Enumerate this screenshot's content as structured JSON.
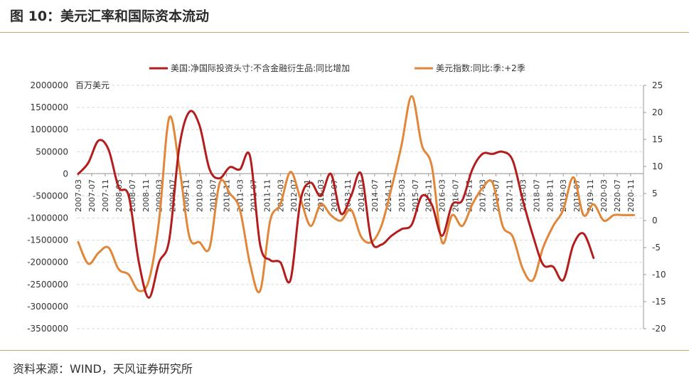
{
  "header": {
    "title": "图 10：美元汇率和国际资本流动"
  },
  "footer": {
    "source": "资料来源：WIND，天风证券研究所"
  },
  "chart_data": {
    "type": "line",
    "left_unit": "百万美元",
    "x_tick_labels": [
      "2007-03",
      "2007-07",
      "2007-11",
      "2008-03",
      "2008-07",
      "2008-11",
      "2009-03",
      "2009-07",
      "2009-11",
      "2010-03",
      "2010-07",
      "2010-11",
      "2011-03",
      "2011-07",
      "2011-11",
      "2012-03",
      "2012-07",
      "2012-11",
      "2013-03",
      "2013-07",
      "2013-11",
      "2014-03",
      "2014-07",
      "2014-11",
      "2015-03",
      "2015-07",
      "2015-11",
      "2016-03",
      "2016-07",
      "2016-11",
      "2017-03",
      "2017-07",
      "2017-11",
      "2018-03",
      "2018-07",
      "2018-11",
      "2019-03",
      "2019-07",
      "2019-11",
      "2020-03",
      "2020-07",
      "2020-11"
    ],
    "y_left": {
      "min": -3500000,
      "max": 2000000,
      "ticks": [
        "2000000",
        "1500000",
        "1000000",
        "500000",
        "0",
        "-500000",
        "-1000000",
        "-1500000",
        "-2000000",
        "-2500000",
        "-3000000",
        "-3500000"
      ]
    },
    "y_right": {
      "min": -20,
      "max": 25,
      "ticks": [
        "25",
        "20",
        "15",
        "10",
        "5",
        "0",
        "-5",
        "-10",
        "-15",
        "-20"
      ]
    },
    "grid": "horizontal-dashed",
    "legend_position": "top",
    "series": [
      {
        "name": "美国:净国际投资头寸:不含金融衍生品:同比增加",
        "axis": "left",
        "color": "#b31d1d",
        "x": [
          "2007-03",
          "2007-06",
          "2007-09",
          "2007-12",
          "2008-03",
          "2008-06",
          "2008-09",
          "2008-12",
          "2009-03",
          "2009-06",
          "2009-09",
          "2009-12",
          "2010-03",
          "2010-06",
          "2010-09",
          "2010-12",
          "2011-03",
          "2011-06",
          "2011-09",
          "2011-12",
          "2012-03",
          "2012-06",
          "2012-09",
          "2012-12",
          "2013-03",
          "2013-06",
          "2013-09",
          "2013-12",
          "2014-03",
          "2014-06",
          "2014-09",
          "2014-12",
          "2015-03",
          "2015-06",
          "2015-09",
          "2015-12",
          "2016-03",
          "2016-06",
          "2016-09",
          "2016-12",
          "2017-03",
          "2017-06",
          "2017-09",
          "2017-12",
          "2018-03",
          "2018-06",
          "2018-09",
          "2018-12",
          "2019-03",
          "2019-06",
          "2019-09",
          "2019-12"
        ],
        "values": [
          0,
          250000,
          750000,
          550000,
          -300000,
          -500000,
          -2000000,
          -2800000,
          -2000000,
          -1500000,
          600000,
          1400000,
          1100000,
          100000,
          -100000,
          150000,
          100000,
          400000,
          -1600000,
          -1950000,
          -2000000,
          -2400000,
          -600000,
          -200000,
          -500000,
          0,
          -900000,
          -500000,
          0,
          -1500000,
          -1600000,
          -1400000,
          -1250000,
          -1150000,
          -500000,
          -700000,
          -1400000,
          -700000,
          -600000,
          100000,
          450000,
          450000,
          500000,
          300000,
          -600000,
          -1400000,
          -2050000,
          -2100000,
          -2400000,
          -1600000,
          -1350000,
          -1900000
        ]
      },
      {
        "name": "美元指数:同比:季:+2季",
        "axis": "right",
        "color": "#e0873a",
        "x": [
          "2007-03",
          "2007-06",
          "2007-09",
          "2007-12",
          "2008-03",
          "2008-06",
          "2008-09",
          "2008-12",
          "2009-03",
          "2009-06",
          "2009-09",
          "2009-12",
          "2010-03",
          "2010-06",
          "2010-09",
          "2010-12",
          "2011-03",
          "2011-06",
          "2011-09",
          "2011-12",
          "2012-03",
          "2012-06",
          "2012-09",
          "2012-12",
          "2013-03",
          "2013-06",
          "2013-09",
          "2013-12",
          "2014-03",
          "2014-06",
          "2014-09",
          "2014-12",
          "2015-03",
          "2015-06",
          "2015-09",
          "2015-12",
          "2016-03",
          "2016-06",
          "2016-09",
          "2016-12",
          "2017-03",
          "2017-06",
          "2017-09",
          "2017-12",
          "2018-03",
          "2018-06",
          "2018-09",
          "2018-12",
          "2019-03",
          "2019-06",
          "2019-09",
          "2019-12",
          "2020-03",
          "2020-06",
          "2020-09",
          "2020-12"
        ],
        "values": [
          -4,
          -8,
          -6,
          -5,
          -9,
          -10,
          -13,
          -11,
          0,
          19,
          10,
          -3,
          -4,
          -5,
          7,
          5,
          2,
          -8,
          -13,
          0,
          3,
          9,
          4,
          -1,
          3,
          1,
          0,
          2,
          -3,
          -4,
          -1,
          6,
          14,
          23,
          14,
          10,
          -4,
          1,
          -1,
          3,
          6,
          7,
          -1,
          -3,
          -9,
          -11,
          -5,
          -1,
          2,
          8,
          1,
          3,
          0,
          1,
          1,
          1
        ]
      }
    ]
  }
}
